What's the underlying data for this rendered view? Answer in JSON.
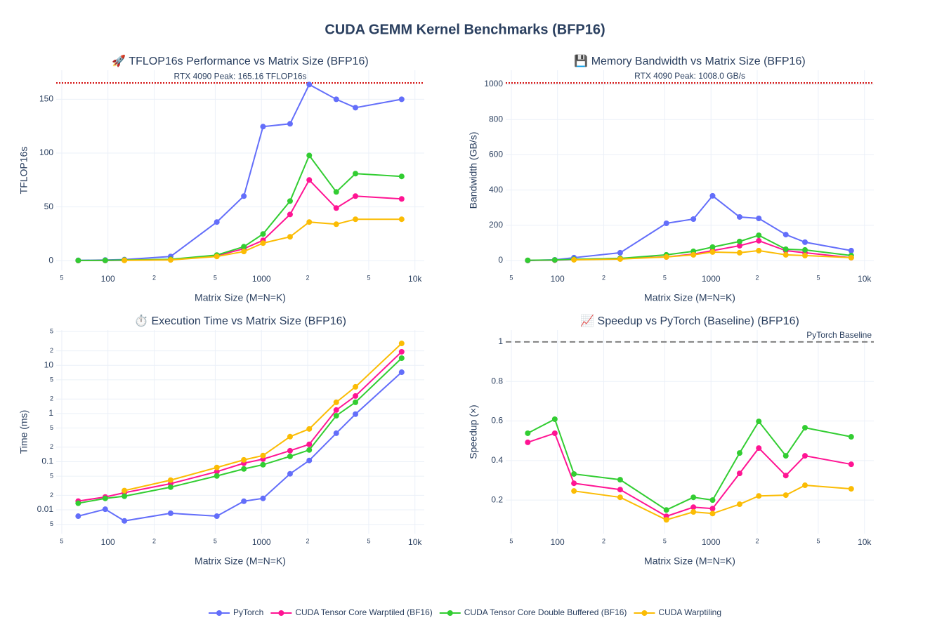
{
  "title": "CUDA GEMM Kernel Benchmarks (BFP16)",
  "legend": "bottom",
  "chart_data": [
    {
      "type": "line",
      "title": "🚀 TFLOP16s Performance vs Matrix Size (BFP16)",
      "x_label": "Matrix Size (M=N=K)",
      "y_label": "TFLOP16s",
      "x": [
        64,
        96,
        128,
        256,
        512,
        768,
        1024,
        1536,
        2048,
        3072,
        4096,
        8192
      ],
      "xlog": true,
      "xlim": [
        46,
        11500
      ],
      "xticks": [
        {
          "value": 50,
          "label": "5"
        },
        100,
        {
          "value": 200,
          "label": "2"
        },
        {
          "value": 500,
          "label": "5"
        },
        1000,
        {
          "value": 2000,
          "label": "2"
        },
        {
          "value": 5000,
          "label": "5"
        },
        {
          "value": 10000,
          "label": "10k"
        }
      ],
      "ylog": false,
      "ylim": [
        -9,
        177
      ],
      "yticks": [
        0,
        50,
        100,
        150
      ],
      "grid": true,
      "reference_line": {
        "value": 165.16,
        "label": "RTX 4090 Peak: 165.16 TFLOP16s",
        "color": "#d00000",
        "style": "dotted",
        "label_position": "center"
      },
      "series": [
        {
          "name": "PyTorch",
          "color": "#636efa",
          "values": [
            0.3,
            0.6,
            1.0,
            3.9,
            35.9,
            60.0,
            124.6,
            127.2,
            163.7,
            150.0,
            142.2,
            150.0
          ]
        },
        {
          "name": "CUDA Tensor Core Warptiled (BF16)",
          "color": "#ff1493",
          "values": [
            0.1,
            0.2,
            0.4,
            1.0,
            4.6,
            11.1,
            18.9,
            43.0,
            75.0,
            48.9,
            60.0,
            57.4
          ]
        },
        {
          "name": "CUDA Tensor Core Double Buffered (BF16)",
          "color": "#32cd32",
          "values": [
            0.2,
            0.3,
            0.6,
            1.3,
            5.2,
            13.0,
            24.8,
            55.4,
            97.8,
            63.9,
            80.9,
            78.3
          ]
        },
        {
          "name": "CUDA Warptiling",
          "color": "#fbbc04",
          "values": [
            null,
            null,
            0.3,
            0.7,
            3.9,
            8.5,
            16.3,
            22.2,
            35.9,
            33.9,
            38.5,
            38.5
          ]
        }
      ]
    },
    {
      "type": "line",
      "title": "💾 Memory Bandwidth vs Matrix Size (BFP16)",
      "x_label": "Matrix Size (M=N=K)",
      "y_label": "Bandwidth (GB/s)",
      "x": [
        64,
        96,
        128,
        256,
        512,
        768,
        1024,
        1536,
        2048,
        3072,
        4096,
        8192
      ],
      "xlog": true,
      "xlim": [
        46,
        11500
      ],
      "xticks": [
        {
          "value": 50,
          "label": "5"
        },
        100,
        {
          "value": 200,
          "label": "2"
        },
        {
          "value": 500,
          "label": "5"
        },
        1000,
        {
          "value": 2000,
          "label": "2"
        },
        {
          "value": 5000,
          "label": "5"
        },
        {
          "value": 10000,
          "label": "10k"
        }
      ],
      "ylog": false,
      "ylim": [
        -56,
        1080
      ],
      "yticks": [
        0,
        200,
        400,
        600,
        800,
        1000
      ],
      "grid": true,
      "reference_line": {
        "value": 1008.0,
        "label": "RTX 4090 Peak: 1008.0 GB/s",
        "color": "#d00000",
        "style": "dotted",
        "label_position": "center"
      },
      "series": [
        {
          "name": "PyTorch",
          "color": "#636efa",
          "values": [
            0,
            4,
            16,
            44,
            211,
            235,
            367,
            247,
            239,
            147,
            104,
            56
          ]
        },
        {
          "name": "CUDA Tensor Core Warptiled (BF16)",
          "color": "#ff1493",
          "values": [
            0.5,
            2,
            6,
            12,
            20,
            36,
            56,
            84,
            112,
            56,
            44,
            16
          ]
        },
        {
          "name": "CUDA Tensor Core Double Buffered (BF16)",
          "color": "#32cd32",
          "values": [
            1,
            3,
            7,
            12,
            32,
            52,
            76,
            108,
            143,
            64,
            60,
            28
          ]
        },
        {
          "name": "CUDA Warptiling",
          "color": "#fbbc04",
          "values": [
            null,
            null,
            4,
            8,
            20,
            32,
            48,
            44,
            56,
            32,
            28,
            16
          ]
        }
      ]
    },
    {
      "type": "line",
      "title": "⏱️ Execution Time vs Matrix Size (BFP16)",
      "x_label": "Matrix Size (M=N=K)",
      "y_label": "Time (ms)",
      "x": [
        64,
        96,
        128,
        256,
        512,
        768,
        1024,
        1536,
        2048,
        3072,
        4096,
        8192
      ],
      "xlog": true,
      "xlim": [
        46,
        11500
      ],
      "xticks": [
        {
          "value": 50,
          "label": "5"
        },
        100,
        {
          "value": 200,
          "label": "2"
        },
        {
          "value": 500,
          "label": "5"
        },
        1000,
        {
          "value": 2000,
          "label": "2"
        },
        {
          "value": 5000,
          "label": "5"
        },
        {
          "value": 10000,
          "label": "10k"
        }
      ],
      "ylog": true,
      "ylim": [
        0.0032,
        54
      ],
      "yticks": [
        {
          "value": 0.005,
          "label": "5"
        },
        0.01,
        {
          "value": 0.02,
          "label": "2"
        },
        {
          "value": 0.05,
          "label": "5"
        },
        0.1,
        {
          "value": 0.2,
          "label": "2"
        },
        {
          "value": 0.5,
          "label": "5"
        },
        1,
        2,
        5,
        10,
        {
          "value": 20,
          "label": "2"
        },
        {
          "value": 50,
          "label": "5"
        }
      ],
      "grid": true,
      "series": [
        {
          "name": "PyTorch",
          "color": "#636efa",
          "values": [
            0.0074,
            0.0103,
            0.0059,
            0.0085,
            0.0074,
            0.0151,
            0.0173,
            0.056,
            0.106,
            0.39,
            0.97,
            7.2
          ]
        },
        {
          "name": "CUDA Tensor Core Warptiled (BF16)",
          "color": "#ff1493",
          "values": [
            0.0152,
            0.0185,
            0.0227,
            0.035,
            0.062,
            0.093,
            0.113,
            0.169,
            0.229,
            1.18,
            2.31,
            19.1
          ]
        },
        {
          "name": "CUDA Tensor Core Double Buffered (BF16)",
          "color": "#32cd32",
          "values": [
            0.0137,
            0.0173,
            0.0192,
            0.0296,
            0.0506,
            0.0708,
            0.0865,
            0.129,
            0.175,
            0.9,
            1.71,
            14.1
          ]
        },
        {
          "name": "CUDA Warptiling",
          "color": "#fbbc04",
          "values": [
            null,
            null,
            0.0251,
            0.0414,
            0.0757,
            0.109,
            0.134,
            0.331,
            0.478,
            1.71,
            3.57,
            28.5
          ]
        }
      ]
    },
    {
      "type": "line",
      "title": "📈 Speedup vs PyTorch (Baseline) (BFP16)",
      "x_label": "Matrix Size (M=N=K)",
      "y_label": "Speedup (×)",
      "x": [
        64,
        96,
        128,
        256,
        512,
        768,
        1024,
        1536,
        2048,
        3072,
        4096,
        8192
      ],
      "xlog": true,
      "xlim": [
        46,
        11500
      ],
      "xticks": [
        {
          "value": 50,
          "label": "5"
        },
        100,
        {
          "value": 200,
          "label": "2"
        },
        {
          "value": 500,
          "label": "5"
        },
        1000,
        {
          "value": 2000,
          "label": "2"
        },
        {
          "value": 5000,
          "label": "5"
        },
        {
          "value": 10000,
          "label": "10k"
        }
      ],
      "ylog": false,
      "ylim": [
        0.03,
        1.06
      ],
      "yticks": [
        0.2,
        0.4,
        0.6,
        0.8,
        1
      ],
      "grid": true,
      "reference_line": {
        "value": 1,
        "label": "PyTorch Baseline",
        "color": "#808080",
        "style": "dashed",
        "label_position": "right"
      },
      "series": [
        {
          "name": "CUDA Tensor Core Warptiled (BF16)",
          "color": "#ff1493",
          "values": [
            0.492,
            0.538,
            0.285,
            0.253,
            0.118,
            0.164,
            0.157,
            0.335,
            0.463,
            0.324,
            0.424,
            0.381
          ]
        },
        {
          "name": "CUDA Tensor Core Double Buffered (BF16)",
          "color": "#32cd32",
          "values": [
            0.538,
            0.609,
            0.332,
            0.303,
            0.15,
            0.214,
            0.2,
            0.438,
            0.598,
            0.424,
            0.566,
            0.52
          ]
        },
        {
          "name": "CUDA Warptiling",
          "color": "#fbbc04",
          "values": [
            null,
            null,
            0.246,
            0.214,
            0.1,
            0.14,
            0.132,
            0.179,
            0.221,
            0.225,
            0.275,
            0.257
          ]
        }
      ]
    }
  ]
}
